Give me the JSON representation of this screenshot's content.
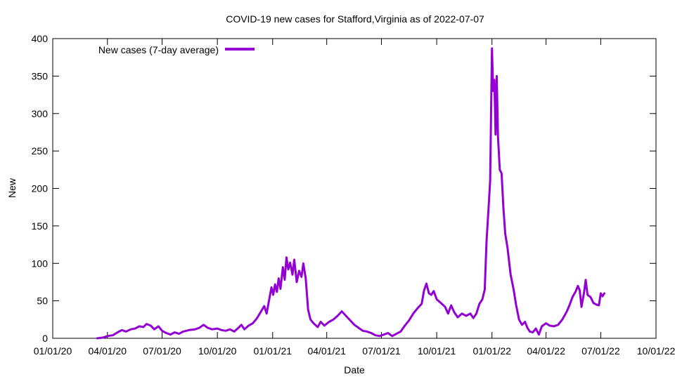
{
  "chart_data": {
    "type": "line",
    "title": "COVID-19 new cases for Stafford,Virginia as of 2022-07-07",
    "xlabel": "Date",
    "ylabel": "New",
    "x_range": [
      "2020-01-01",
      "2022-10-01"
    ],
    "ylim": [
      0,
      400
    ],
    "x_ticks": [
      {
        "date": "2020-01-01",
        "label": "01/01/20"
      },
      {
        "date": "2020-04-01",
        "label": "04/01/20"
      },
      {
        "date": "2020-07-01",
        "label": "07/01/20"
      },
      {
        "date": "2020-10-01",
        "label": "10/01/20"
      },
      {
        "date": "2021-01-01",
        "label": "01/01/21"
      },
      {
        "date": "2021-04-01",
        "label": "04/01/21"
      },
      {
        "date": "2021-07-01",
        "label": "07/01/21"
      },
      {
        "date": "2021-10-01",
        "label": "10/01/21"
      },
      {
        "date": "2022-01-01",
        "label": "01/01/22"
      },
      {
        "date": "2022-04-01",
        "label": "04/01/22"
      },
      {
        "date": "2022-07-01",
        "label": "07/01/22"
      },
      {
        "date": "2022-10-01",
        "label": "10/01/22"
      }
    ],
    "y_ticks": [
      0,
      50,
      100,
      150,
      200,
      250,
      300,
      350,
      400
    ],
    "grid": false,
    "legend_position": "top-left",
    "series": [
      {
        "name": "New cases (7-day average)",
        "color": "#9400d3",
        "points": [
          [
            "2020-03-15",
            0
          ],
          [
            "2020-03-25",
            1
          ],
          [
            "2020-04-01",
            3
          ],
          [
            "2020-04-10",
            4
          ],
          [
            "2020-04-18",
            8
          ],
          [
            "2020-04-25",
            11
          ],
          [
            "2020-05-02",
            9
          ],
          [
            "2020-05-10",
            12
          ],
          [
            "2020-05-17",
            13
          ],
          [
            "2020-05-24",
            16
          ],
          [
            "2020-05-31",
            15
          ],
          [
            "2020-06-05",
            19
          ],
          [
            "2020-06-12",
            17
          ],
          [
            "2020-06-18",
            12
          ],
          [
            "2020-06-25",
            16
          ],
          [
            "2020-07-01",
            10
          ],
          [
            "2020-07-08",
            7
          ],
          [
            "2020-07-15",
            5
          ],
          [
            "2020-07-22",
            8
          ],
          [
            "2020-07-29",
            6
          ],
          [
            "2020-08-05",
            9
          ],
          [
            "2020-08-15",
            11
          ],
          [
            "2020-08-25",
            12
          ],
          [
            "2020-09-01",
            14
          ],
          [
            "2020-09-08",
            18
          ],
          [
            "2020-09-15",
            14
          ],
          [
            "2020-09-22",
            12
          ],
          [
            "2020-10-01",
            13
          ],
          [
            "2020-10-08",
            11
          ],
          [
            "2020-10-15",
            10
          ],
          [
            "2020-10-22",
            12
          ],
          [
            "2020-10-29",
            9
          ],
          [
            "2020-11-05",
            14
          ],
          [
            "2020-11-10",
            18
          ],
          [
            "2020-11-15",
            12
          ],
          [
            "2020-11-22",
            17
          ],
          [
            "2020-11-29",
            20
          ],
          [
            "2020-12-06",
            27
          ],
          [
            "2020-12-12",
            35
          ],
          [
            "2020-12-18",
            43
          ],
          [
            "2020-12-22",
            33
          ],
          [
            "2020-12-27",
            55
          ],
          [
            "2020-12-30",
            68
          ],
          [
            "2021-01-02",
            58
          ],
          [
            "2021-01-05",
            72
          ],
          [
            "2021-01-08",
            62
          ],
          [
            "2021-01-11",
            80
          ],
          [
            "2021-01-14",
            66
          ],
          [
            "2021-01-18",
            95
          ],
          [
            "2021-01-21",
            78
          ],
          [
            "2021-01-24",
            108
          ],
          [
            "2021-01-27",
            92
          ],
          [
            "2021-01-30",
            101
          ],
          [
            "2021-02-03",
            85
          ],
          [
            "2021-02-06",
            105
          ],
          [
            "2021-02-10",
            75
          ],
          [
            "2021-02-14",
            90
          ],
          [
            "2021-02-18",
            82
          ],
          [
            "2021-02-21",
            100
          ],
          [
            "2021-02-25",
            80
          ],
          [
            "2021-03-01",
            38
          ],
          [
            "2021-03-05",
            25
          ],
          [
            "2021-03-10",
            20
          ],
          [
            "2021-03-17",
            15
          ],
          [
            "2021-03-22",
            22
          ],
          [
            "2021-03-28",
            17
          ],
          [
            "2021-04-05",
            22
          ],
          [
            "2021-04-12",
            25
          ],
          [
            "2021-04-19",
            30
          ],
          [
            "2021-04-26",
            36
          ],
          [
            "2021-05-03",
            30
          ],
          [
            "2021-05-10",
            24
          ],
          [
            "2021-05-17",
            18
          ],
          [
            "2021-05-24",
            14
          ],
          [
            "2021-05-31",
            10
          ],
          [
            "2021-06-07",
            9
          ],
          [
            "2021-06-14",
            7
          ],
          [
            "2021-06-21",
            4
          ],
          [
            "2021-06-28",
            3
          ],
          [
            "2021-07-05",
            5
          ],
          [
            "2021-07-12",
            7
          ],
          [
            "2021-07-19",
            3
          ],
          [
            "2021-07-26",
            6
          ],
          [
            "2021-08-02",
            9
          ],
          [
            "2021-08-09",
            17
          ],
          [
            "2021-08-16",
            24
          ],
          [
            "2021-08-23",
            33
          ],
          [
            "2021-08-30",
            40
          ],
          [
            "2021-09-06",
            46
          ],
          [
            "2021-09-10",
            64
          ],
          [
            "2021-09-14",
            73
          ],
          [
            "2021-09-18",
            60
          ],
          [
            "2021-09-22",
            58
          ],
          [
            "2021-09-26",
            63
          ],
          [
            "2021-10-01",
            52
          ],
          [
            "2021-10-08",
            47
          ],
          [
            "2021-10-15",
            42
          ],
          [
            "2021-10-20",
            33
          ],
          [
            "2021-10-25",
            44
          ],
          [
            "2021-10-30",
            35
          ],
          [
            "2021-11-05",
            28
          ],
          [
            "2021-11-12",
            33
          ],
          [
            "2021-11-19",
            30
          ],
          [
            "2021-11-26",
            33
          ],
          [
            "2021-12-01",
            27
          ],
          [
            "2021-12-06",
            33
          ],
          [
            "2021-12-11",
            46
          ],
          [
            "2021-12-16",
            52
          ],
          [
            "2021-12-20",
            65
          ],
          [
            "2021-12-23",
            130
          ],
          [
            "2021-12-26",
            170
          ],
          [
            "2021-12-29",
            210
          ],
          [
            "2022-01-01",
            387
          ],
          [
            "2022-01-03",
            330
          ],
          [
            "2022-01-05",
            345
          ],
          [
            "2022-01-07",
            272
          ],
          [
            "2022-01-09",
            350
          ],
          [
            "2022-01-11",
            270
          ],
          [
            "2022-01-14",
            225
          ],
          [
            "2022-01-17",
            220
          ],
          [
            "2022-01-20",
            175
          ],
          [
            "2022-01-23",
            140
          ],
          [
            "2022-01-27",
            120
          ],
          [
            "2022-02-01",
            85
          ],
          [
            "2022-02-06",
            65
          ],
          [
            "2022-02-10",
            45
          ],
          [
            "2022-02-15",
            25
          ],
          [
            "2022-02-20",
            18
          ],
          [
            "2022-02-25",
            22
          ],
          [
            "2022-03-01",
            14
          ],
          [
            "2022-03-05",
            9
          ],
          [
            "2022-03-10",
            8
          ],
          [
            "2022-03-15",
            13
          ],
          [
            "2022-03-20",
            5
          ],
          [
            "2022-03-25",
            16
          ],
          [
            "2022-04-01",
            20
          ],
          [
            "2022-04-07",
            17
          ],
          [
            "2022-04-14",
            16
          ],
          [
            "2022-04-21",
            18
          ],
          [
            "2022-04-28",
            25
          ],
          [
            "2022-05-05",
            35
          ],
          [
            "2022-05-10",
            44
          ],
          [
            "2022-05-15",
            55
          ],
          [
            "2022-05-20",
            62
          ],
          [
            "2022-05-24",
            70
          ],
          [
            "2022-05-27",
            64
          ],
          [
            "2022-05-30",
            42
          ],
          [
            "2022-06-03",
            60
          ],
          [
            "2022-06-06",
            78
          ],
          [
            "2022-06-09",
            58
          ],
          [
            "2022-06-14",
            55
          ],
          [
            "2022-06-19",
            47
          ],
          [
            "2022-06-24",
            45
          ],
          [
            "2022-06-28",
            44
          ],
          [
            "2022-07-01",
            60
          ],
          [
            "2022-07-04",
            56
          ],
          [
            "2022-07-07",
            60
          ]
        ]
      }
    ]
  }
}
